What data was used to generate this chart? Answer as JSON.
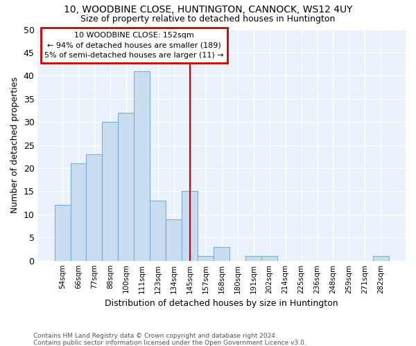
{
  "title": "10, WOODBINE CLOSE, HUNTINGTON, CANNOCK, WS12 4UY",
  "subtitle": "Size of property relative to detached houses in Huntington",
  "xlabel": "Distribution of detached houses by size in Huntington",
  "ylabel": "Number of detached properties",
  "bar_color": "#c8ddf0",
  "bar_edge_color": "#7aafd4",
  "background_color": "#eaf2fb",
  "grid_color": "#ffffff",
  "fig_bg_color": "#ffffff",
  "categories": [
    "54sqm",
    "66sqm",
    "77sqm",
    "88sqm",
    "100sqm",
    "111sqm",
    "123sqm",
    "134sqm",
    "145sqm",
    "157sqm",
    "168sqm",
    "180sqm",
    "191sqm",
    "202sqm",
    "214sqm",
    "225sqm",
    "236sqm",
    "248sqm",
    "259sqm",
    "271sqm",
    "282sqm"
  ],
  "values": [
    12,
    21,
    23,
    30,
    32,
    41,
    13,
    9,
    15,
    1,
    3,
    0,
    1,
    1,
    0,
    0,
    0,
    0,
    0,
    0,
    1
  ],
  "vline_bin": 8,
  "annotation_title": "10 WOODBINE CLOSE: 152sqm",
  "annotation_line1": "← 94% of detached houses are smaller (189)",
  "annotation_line2": "5% of semi-detached houses are larger (11) →",
  "ylim_max": 50,
  "yticks": [
    0,
    5,
    10,
    15,
    20,
    25,
    30,
    35,
    40,
    45,
    50
  ],
  "footer_line1": "Contains HM Land Registry data © Crown copyright and database right 2024.",
  "footer_line2": "Contains public sector information licensed under the Open Government Licence v3.0."
}
